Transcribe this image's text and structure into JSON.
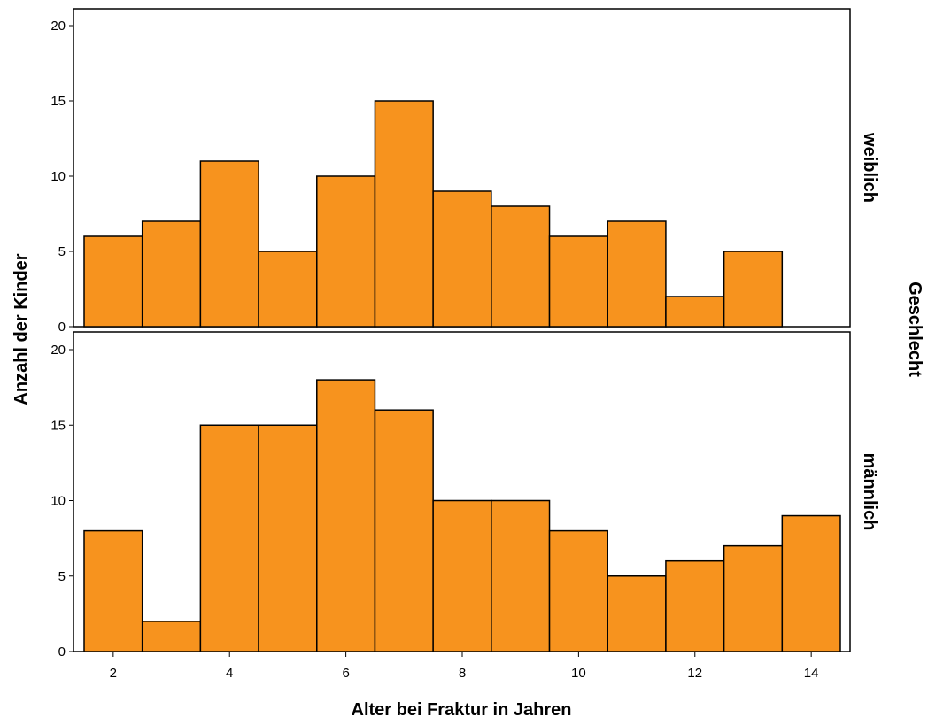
{
  "chart_data": {
    "type": "bar",
    "subtype": "histogram",
    "xlabel": "Alter bei Fraktur in Jahren",
    "ylabel": "Anzahl der Kinder",
    "facet_label": "Geschlecht",
    "bar_color": "#F7931E",
    "bar_edge_color": "#000000",
    "x_ticks": [
      "2",
      "4",
      "6",
      "8",
      "10",
      "12",
      "14"
    ],
    "x_tick_values": [
      2,
      4,
      6,
      8,
      10,
      12,
      14
    ],
    "xlim": [
      1.5,
      14.5
    ],
    "ylim": [
      0,
      20
    ],
    "y_ticks": [
      "0",
      "5",
      "10",
      "15",
      "20"
    ],
    "y_tick_values": [
      0,
      5,
      10,
      15,
      20
    ],
    "grid": false,
    "bin_width": 1,
    "panels": [
      {
        "name": "weiblich",
        "bins": [
          2,
          3,
          4,
          5,
          6,
          7,
          8,
          9,
          10,
          11,
          12,
          13
        ],
        "values": [
          6,
          7,
          11,
          5,
          10,
          15,
          9,
          8,
          6,
          7,
          2,
          5
        ]
      },
      {
        "name": "männlich",
        "bins": [
          2,
          3,
          4,
          5,
          6,
          7,
          8,
          9,
          10,
          11,
          12,
          13,
          14
        ],
        "values": [
          8,
          2,
          15,
          15,
          18,
          16,
          10,
          10,
          8,
          5,
          6,
          7,
          9
        ]
      }
    ]
  }
}
